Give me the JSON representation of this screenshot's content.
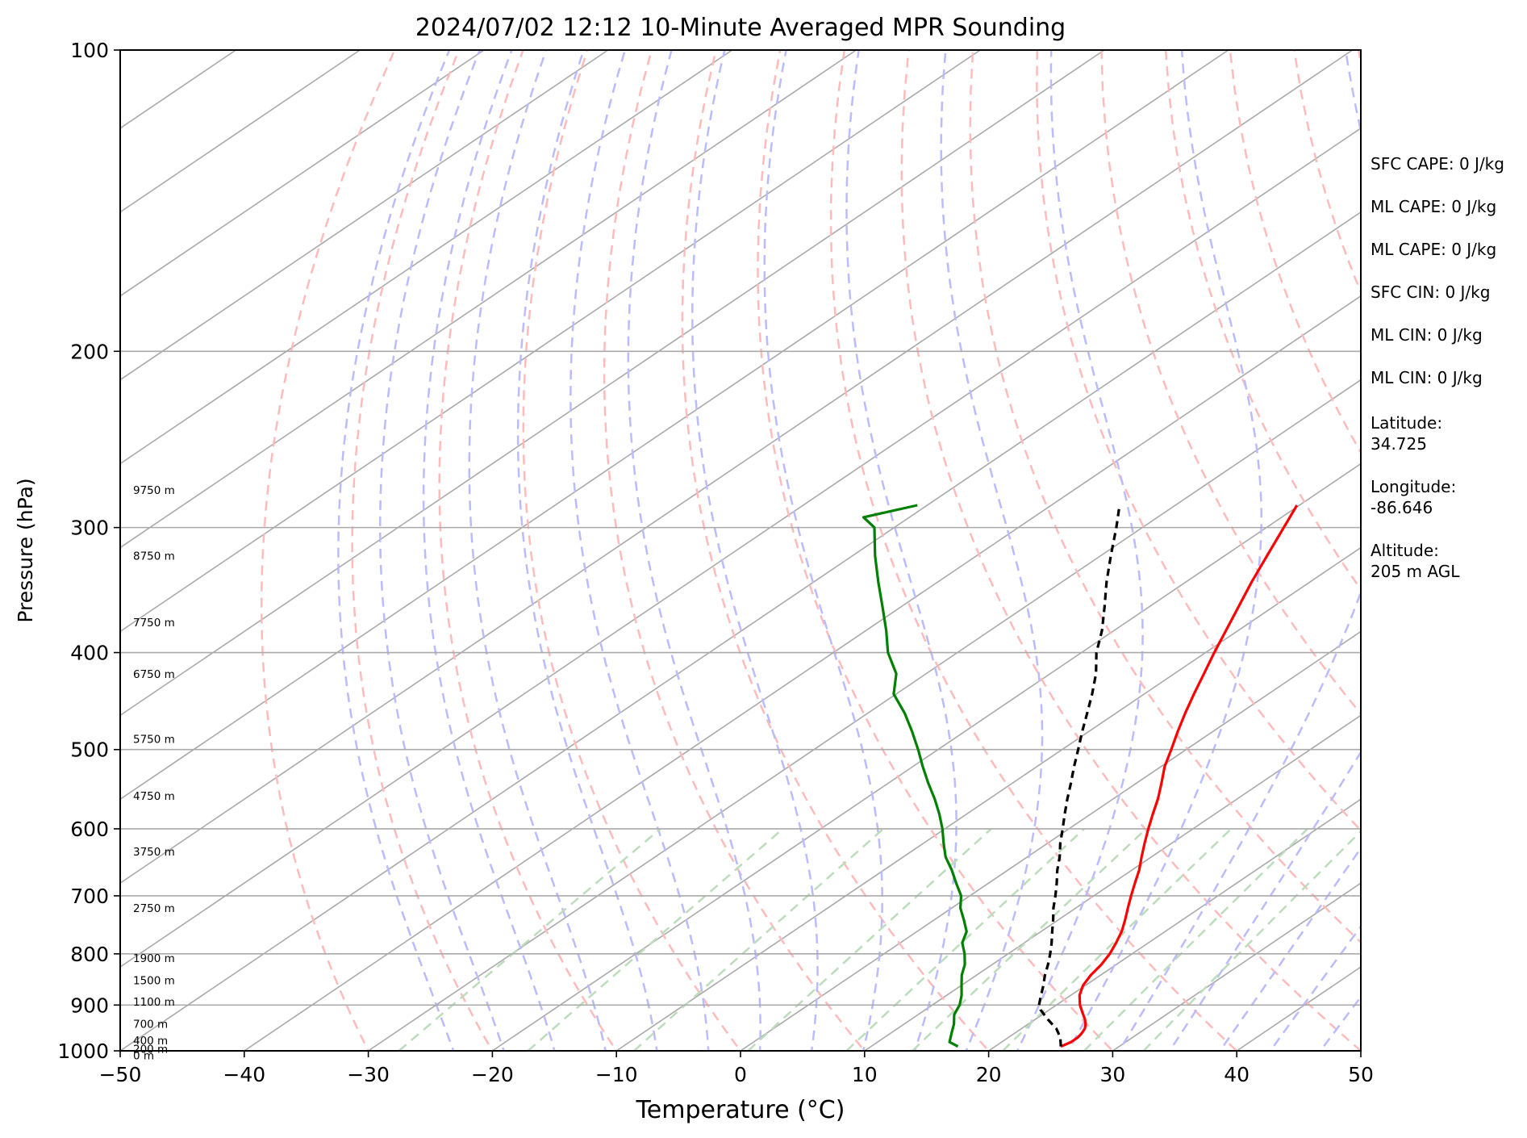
{
  "chart_data": {
    "type": "line",
    "subtype": "skew-t log-p sounding",
    "title": "2024/07/02 12:12 10-Minute Averaged MPR Sounding",
    "xlabel": "Temperature (°C)",
    "ylabel": "Pressure (hPa)",
    "xlim": [
      -50,
      50
    ],
    "ylim": [
      1000,
      100
    ],
    "y_scale": "log",
    "x_ticks": [
      -50,
      -40,
      -30,
      -20,
      -10,
      0,
      10,
      20,
      30,
      40,
      50
    ],
    "x_tick_labels": [
      "−50",
      "−40",
      "−30",
      "−20",
      "−10",
      "0",
      "10",
      "20",
      "30",
      "40",
      "50"
    ],
    "y_ticks": [
      100,
      200,
      300,
      400,
      500,
      600,
      700,
      800,
      900,
      1000
    ],
    "y_tick_labels": [
      "100",
      "200",
      "300",
      "400",
      "500",
      "600",
      "700",
      "800",
      "900",
      "1000"
    ],
    "grid": true,
    "colors": {
      "temperature": "#ff0000",
      "dewpoint": "#008000",
      "parcel": "#000000",
      "grid": "#aaaaaa",
      "isotherm": "#aaaaaa",
      "dry_adiabat": "#ffbbbb",
      "moist_adiabat": "#bbbbff",
      "mixing_ratio": "#bbddbb"
    },
    "series": [
      {
        "key": "temperature",
        "style": "solid",
        "p": [
          990,
          980,
          970,
          960,
          950,
          940,
          930,
          920,
          910,
          900,
          880,
          860,
          840,
          820,
          800,
          780,
          760,
          740,
          720,
          700,
          680,
          660,
          640,
          620,
          600,
          580,
          560,
          540,
          520,
          500,
          480,
          460,
          440,
          420,
          400,
          380,
          360,
          340,
          320,
          300,
          285
        ],
        "t": [
          25.3,
          25.6,
          25.6,
          25.4,
          25.1,
          24.6,
          24.0,
          23.3,
          22.6,
          21.9,
          20.7,
          19.8,
          19.2,
          18.8,
          18.2,
          17.4,
          16.5,
          15.4,
          14.2,
          13.0,
          11.8,
          10.6,
          9.2,
          7.8,
          6.4,
          5.0,
          3.6,
          2.0,
          0.3,
          -1.2,
          -2.8,
          -4.4,
          -6.0,
          -7.6,
          -9.3,
          -11.0,
          -12.8,
          -14.7,
          -16.6,
          -18.6,
          -20.2
        ]
      },
      {
        "key": "parcel",
        "style": "dashed",
        "p": [
          990,
          970,
          950,
          930,
          910,
          900,
          880,
          860,
          840,
          820,
          800,
          780,
          760,
          740,
          720,
          700,
          680,
          660,
          640,
          620,
          600,
          580,
          560,
          540,
          520,
          500,
          480,
          460,
          440,
          420,
          400,
          380,
          360,
          340,
          320,
          300,
          285
        ],
        "t": [
          25.3,
          24.2,
          22.8,
          21.0,
          19.3,
          18.6,
          17.6,
          16.6,
          15.5,
          14.5,
          13.4,
          12.2,
          10.9,
          9.6,
          8.2,
          6.9,
          5.5,
          4.0,
          2.6,
          1.0,
          -0.5,
          -2.1,
          -3.7,
          -5.3,
          -7.0,
          -8.7,
          -10.5,
          -12.3,
          -14.2,
          -16.3,
          -18.8,
          -21.0,
          -23.6,
          -26.4,
          -29.2,
          -32.1,
          -34.5
        ]
      },
      {
        "key": "dewpoint",
        "style": "solid",
        "p": [
          990,
          980,
          960,
          940,
          920,
          900,
          880,
          860,
          840,
          820,
          800,
          780,
          760,
          740,
          720,
          700,
          680,
          660,
          640,
          620,
          600,
          580,
          560,
          540,
          520,
          500,
          480,
          460,
          440,
          420,
          400,
          380,
          360,
          340,
          320,
          300,
          293,
          285
        ],
        "t": [
          17.0,
          15.8,
          14.9,
          14.0,
          12.9,
          12.2,
          11.2,
          10.0,
          8.8,
          7.8,
          6.5,
          5.0,
          4.0,
          2.4,
          0.7,
          -0.7,
          -2.6,
          -4.5,
          -6.6,
          -8.4,
          -10.2,
          -12.2,
          -14.4,
          -16.8,
          -19.2,
          -21.6,
          -24.2,
          -27.0,
          -30.2,
          -32.4,
          -35.6,
          -38.4,
          -41.5,
          -44.8,
          -48.2,
          -51.6,
          -53.7,
          -50.8
        ]
      }
    ],
    "height_labels": [
      "9750 m",
      "8750 m",
      "7750 m",
      "6750 m",
      "5750 m",
      "4750 m",
      "3750 m",
      "2750 m",
      "1900 m",
      "1500 m",
      "1100 m",
      "700 m",
      "400 m",
      "200 m",
      "0 m"
    ],
    "height_label_pressures": [
      275,
      320,
      373,
      420,
      488,
      556,
      632,
      720,
      808,
      850,
      893,
      940,
      976,
      995,
      1010
    ],
    "info_lines": [
      "SFC CAPE: 0 J/kg",
      "ML CAPE: 0 J/kg",
      "ML CAPE: 0 J/kg",
      "SFC CIN: 0 J/kg",
      "ML CIN: 0 J/kg",
      "ML CIN: 0 J/kg",
      "Latitude:",
      "34.725",
      "Longitude:",
      "-86.646",
      "Altitude:",
      "205 m AGL"
    ],
    "legend": "none"
  }
}
